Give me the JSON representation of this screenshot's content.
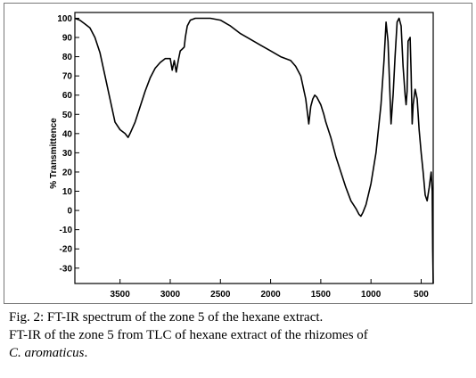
{
  "chart_data": {
    "type": "line",
    "title": "",
    "xlabel": "",
    "ylabel": "% Transmittence",
    "xlim": [
      3950,
      380
    ],
    "ylim": [
      -38,
      103
    ],
    "x_ticks": [
      3500,
      3000,
      2500,
      2000,
      1500,
      1000,
      500
    ],
    "x_tick_labels": [
      "3500",
      "3000",
      "2500",
      "2000",
      "1500",
      "1000",
      "500"
    ],
    "y_ticks": [
      100,
      90,
      80,
      70,
      60,
      50,
      40,
      30,
      20,
      10,
      0,
      -10,
      -20,
      -30
    ],
    "y_tick_labels": [
      "100",
      "90",
      "80",
      "70",
      "60",
      "50",
      "40",
      "30",
      "20",
      "10",
      "0",
      "-10",
      "-20",
      "-30"
    ],
    "grid": false,
    "series": [
      {
        "x": [
          3950,
          3900,
          3850,
          3800,
          3750,
          3700,
          3650,
          3600,
          3550,
          3500,
          3450,
          3420,
          3400,
          3350,
          3300,
          3250,
          3200,
          3150,
          3100,
          3050,
          3000,
          2980,
          2960,
          2940,
          2920,
          2900,
          2880,
          2860,
          2850,
          2830,
          2800,
          2750,
          2700,
          2650,
          2600,
          2500,
          2400,
          2300,
          2200,
          2100,
          2000,
          1900,
          1800,
          1750,
          1700,
          1650,
          1620,
          1600,
          1580,
          1560,
          1540,
          1500,
          1470,
          1450,
          1400,
          1350,
          1300,
          1250,
          1200,
          1150,
          1120,
          1100,
          1080,
          1050,
          1000,
          950,
          900,
          870,
          850,
          830,
          800,
          780,
          760,
          740,
          720,
          700,
          680,
          660,
          650,
          640,
          630,
          610,
          600,
          590,
          580,
          560,
          540,
          520,
          500,
          480,
          460,
          440,
          420,
          400,
          390,
          385,
          380
        ],
        "y": [
          100,
          99,
          97,
          95,
          90,
          82,
          70,
          58,
          46,
          42,
          40,
          38,
          40,
          46,
          54,
          62,
          69,
          74,
          77,
          79,
          79,
          73,
          78,
          72,
          78,
          83,
          84,
          85,
          90,
          96,
          99,
          100,
          100,
          100,
          100,
          99,
          96,
          92,
          89,
          86,
          83,
          80,
          78,
          75,
          70,
          58,
          45,
          54,
          58,
          60,
          59,
          55,
          50,
          46,
          38,
          28,
          20,
          12,
          5,
          1,
          -2,
          -3,
          -1,
          3,
          14,
          30,
          55,
          78,
          98,
          88,
          45,
          60,
          80,
          98,
          100,
          96,
          75,
          60,
          55,
          62,
          88,
          90,
          72,
          45,
          55,
          63,
          58,
          42,
          30,
          20,
          8,
          5,
          12,
          20,
          10,
          -20,
          -40
        ]
      }
    ]
  },
  "caption": {
    "line1": "Fig. 2: FT-IR spectrum of the zone 5 of the hexane extract.",
    "line2": "FT-IR of the zone 5 from TLC of hexane extract of the rhizomes of",
    "line3_species": "C. aromaticus",
    "line3_end": "."
  }
}
